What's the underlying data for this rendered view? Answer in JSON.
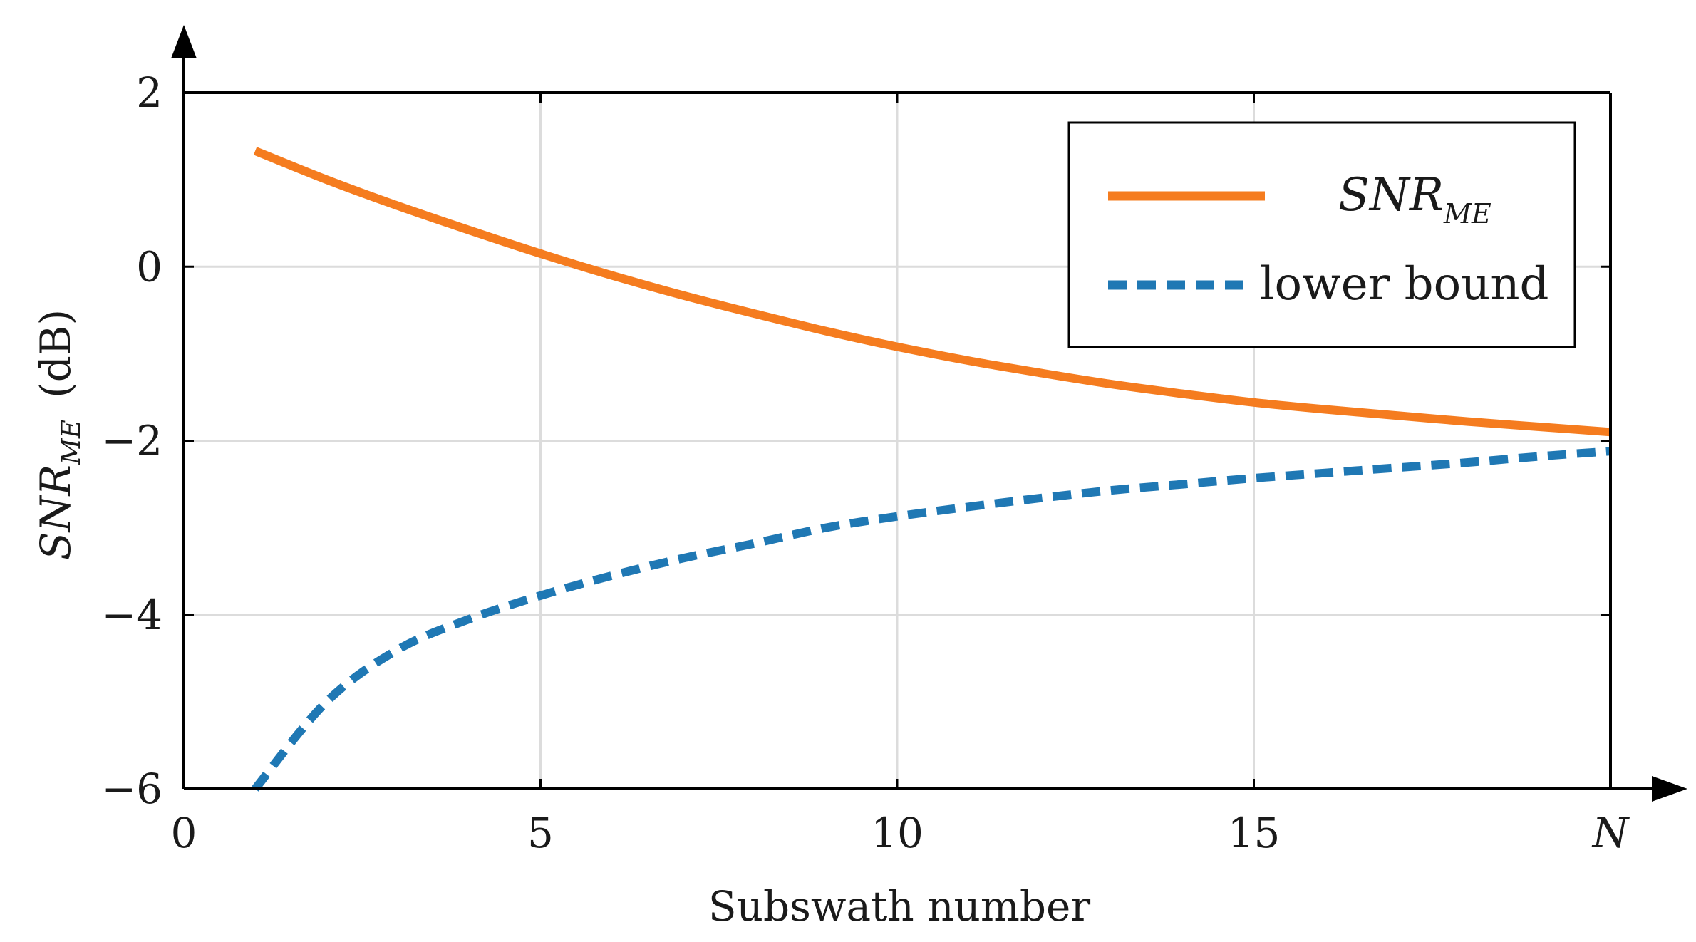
{
  "chart_data": {
    "type": "line",
    "xlabel": "Subswath number",
    "ylabel": {
      "base": "SNR",
      "sub": "ME",
      "unit": "(dB)"
    },
    "xlim": [
      0,
      20
    ],
    "ylim": [
      -6,
      2
    ],
    "x_ticks": [
      0,
      5,
      10,
      15,
      20
    ],
    "x_tick_labels": [
      "0",
      "5",
      "10",
      "15",
      "N"
    ],
    "y_ticks": [
      -6,
      -4,
      -2,
      0,
      2
    ],
    "y_tick_labels": [
      "−6",
      "−4",
      "−2",
      "0",
      "2"
    ],
    "grid": true,
    "legend_position": "top-right",
    "series": [
      {
        "name": "SNR_ME",
        "legend": {
          "base": "SNR",
          "sub": "ME"
        },
        "style": "solid",
        "color": "#F57C1F",
        "x": [
          1,
          2,
          3,
          4,
          5,
          6,
          7,
          8,
          9,
          10,
          11,
          12,
          13,
          14,
          15,
          16,
          17,
          18,
          19,
          20
        ],
        "y": [
          1.33,
          1.0,
          0.7,
          0.42,
          0.15,
          -0.1,
          -0.33,
          -0.54,
          -0.74,
          -0.92,
          -1.08,
          -1.22,
          -1.35,
          -1.46,
          -1.56,
          -1.64,
          -1.71,
          -1.78,
          -1.84,
          -1.9
        ]
      },
      {
        "name": "lower bound",
        "legend": {
          "text": "lower bound"
        },
        "style": "dashed",
        "color": "#1F78B4",
        "x": [
          1,
          2,
          3,
          4,
          5,
          6,
          7,
          8,
          9,
          10,
          11,
          12,
          13,
          14,
          15,
          16,
          17,
          18,
          19,
          20
        ],
        "y": [
          -6.0,
          -5.0,
          -4.4,
          -4.05,
          -3.78,
          -3.55,
          -3.35,
          -3.18,
          -3.0,
          -2.87,
          -2.76,
          -2.66,
          -2.57,
          -2.5,
          -2.43,
          -2.37,
          -2.31,
          -2.25,
          -2.18,
          -2.12
        ]
      }
    ]
  }
}
